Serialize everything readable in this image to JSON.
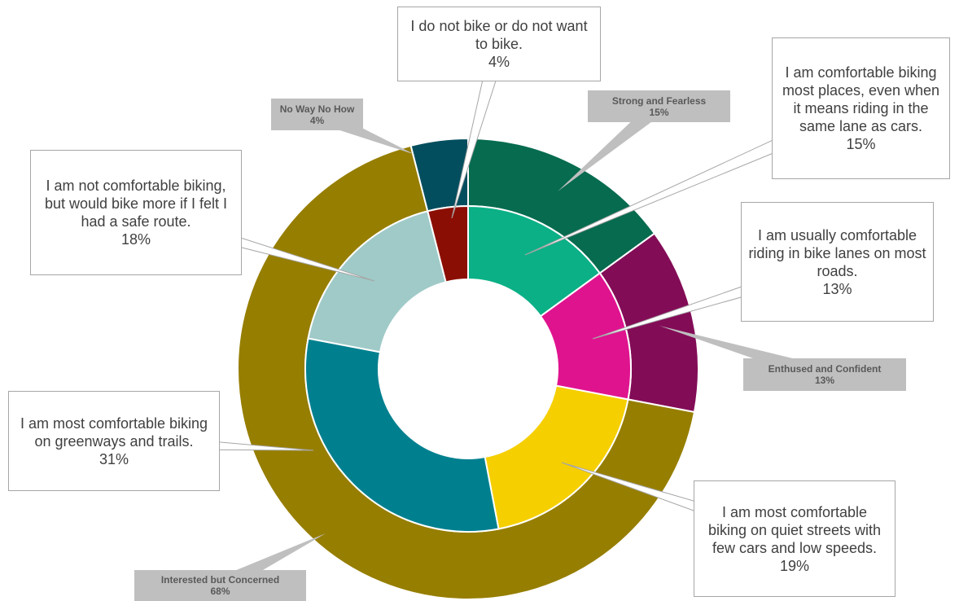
{
  "chart_data": {
    "type": "donut",
    "series": [
      {
        "categories": [
          "Strong and Fearless",
          "Enthused and Confident",
          "Interested but Concerned",
          "No Way No How"
        ],
        "values": [
          15,
          13,
          68,
          4
        ],
        "value_labels": [
          "15%",
          "13%",
          "68%",
          "4%"
        ],
        "colors": [
          "#066b4f",
          "#830c57",
          "#967e00",
          "#034e5e"
        ]
      },
      {
        "categories": [
          "I am comfortable biking most places, even when it means riding in the same lane as cars.",
          "I am usually comfortable riding in bike lanes on most roads.",
          "I am most comfortable biking on quiet streets with few cars and low speeds.",
          "I am most comfortable biking on greenways and trails.",
          "I am not comfortable biking, but would bike more if I felt I had a safe route.",
          "I do not bike or do not want to bike."
        ],
        "values": [
          15,
          13,
          19,
          31,
          18,
          4
        ],
        "value_labels": [
          "15%",
          "13%",
          "19%",
          "31%",
          "18%",
          "4%"
        ],
        "colors": [
          "#0bb086",
          "#e0138f",
          "#f5cf00",
          "#00808f",
          "#9fcac8",
          "#8b0e04"
        ]
      }
    ]
  }
}
